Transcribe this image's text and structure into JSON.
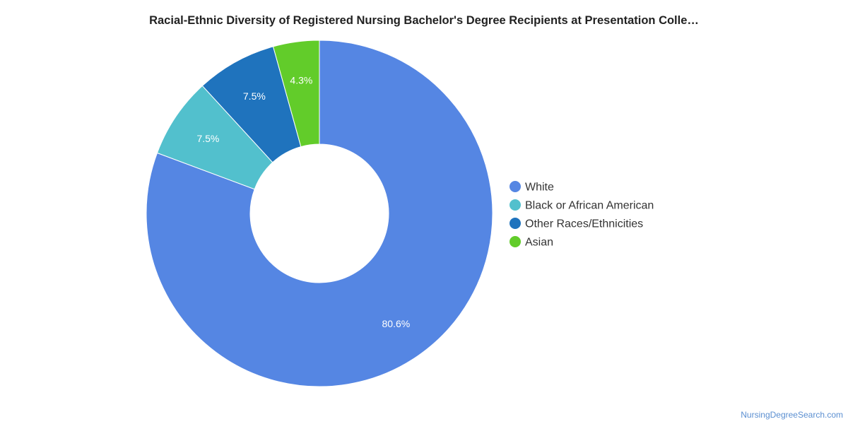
{
  "chart_data": {
    "type": "pie",
    "title": "Racial-Ethnic Diversity of Registered Nursing Bachelor's Degree Recipients at Presentation Colle…",
    "categories": [
      "White",
      "Black or African American",
      "Other Races/Ethnicities",
      "Asian"
    ],
    "values": [
      80.6,
      7.5,
      7.5,
      4.3
    ],
    "value_labels": [
      "80.6%",
      "7.5%",
      "7.5%",
      "4.3%"
    ],
    "colors": [
      "#5586e3",
      "#52c0cd",
      "#1f73bd",
      "#62cc2a"
    ],
    "donut": true,
    "legend_position": "right"
  },
  "credit": "NursingDegreeSearch.com"
}
